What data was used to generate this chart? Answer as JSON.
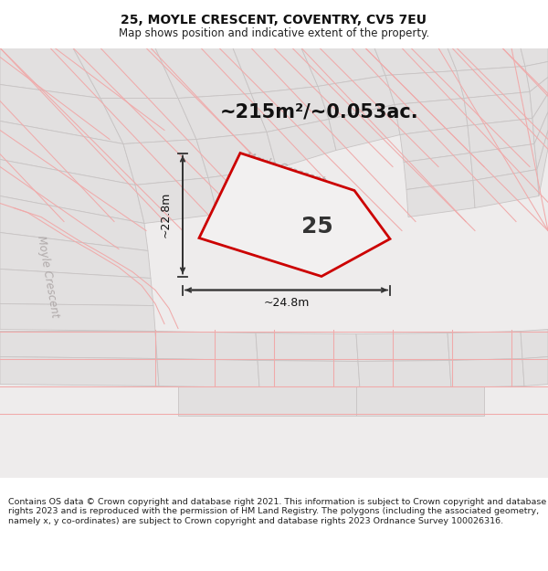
{
  "title": "25, MOYLE CRESCENT, COVENTRY, CV5 7EU",
  "subtitle": "Map shows position and indicative extent of the property.",
  "footer": "Contains OS data © Crown copyright and database right 2021. This information is subject to Crown copyright and database rights 2023 and is reproduced with the permission of HM Land Registry. The polygons (including the associated geometry, namely x, y co-ordinates) are subject to Crown copyright and database rights 2023 Ordnance Survey 100026316.",
  "area_label": "~215m²/~0.053ac.",
  "house_number": "25",
  "dim_width": "~24.8m",
  "dim_height": "~22.8m",
  "street_label_diag": "Moyle Crescent",
  "street_label_vert": "Moyle Crescent",
  "map_bg": "#eeecec",
  "plot_fill": "#f2f0f0",
  "plot_edge_color": "#cc0000",
  "red_line_color": "#f0aaaa",
  "block_fill": "#e2e0e0",
  "block_edge": "#c8c4c4",
  "dim_line_color": "#333333",
  "title_fontsize": 10,
  "subtitle_fontsize": 8.5,
  "footer_fontsize": 6.8,
  "area_label_fontsize": 15,
  "house_number_fontsize": 18,
  "dim_fontsize": 9,
  "street_fontsize": 8.5
}
